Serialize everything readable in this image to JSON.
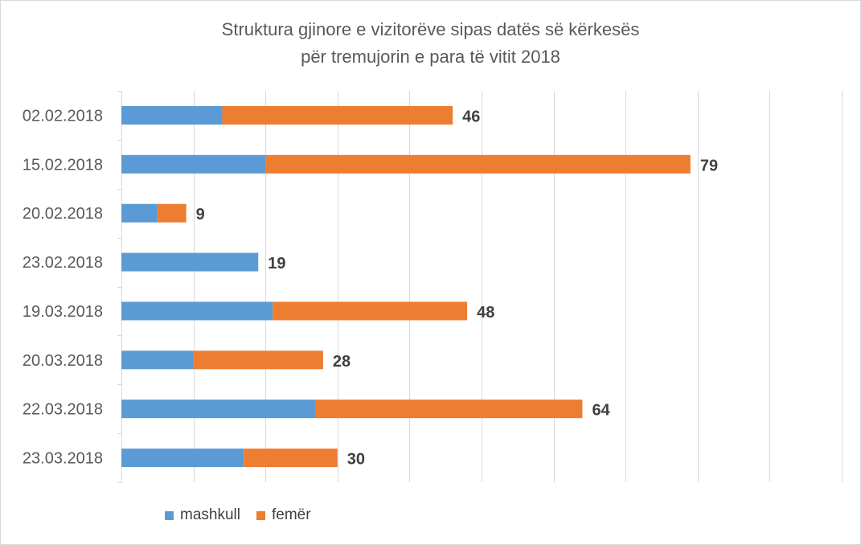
{
  "chart_data": {
    "type": "bar",
    "orientation": "horizontal",
    "stacked": true,
    "title_line1": "Struktura gjinore e vizitorëve sipas datës së kërkesës",
    "title_line2": "për tremujorin e para të vitit 2018",
    "categories": [
      "02.02.2018",
      "15.02.2018",
      "20.02.2018",
      "23.02.2018",
      "19.03.2018",
      "20.03.2018",
      "22.03.2018",
      "23.03.2018"
    ],
    "series": [
      {
        "name": "mashkull",
        "color": "#5b9bd5",
        "values": [
          14,
          20,
          5,
          19,
          21,
          10,
          27,
          17
        ]
      },
      {
        "name": "femër",
        "color": "#ed7d31",
        "values": [
          32,
          59,
          4,
          0,
          27,
          18,
          37,
          13
        ]
      }
    ],
    "totals": [
      "46",
      "79",
      "9",
      "19",
      "48",
      "28",
      "64",
      "30"
    ],
    "xlim": [
      0,
      100
    ],
    "x_gridline_step": 10,
    "grid": "vertical",
    "legend_position": "bottom-left"
  }
}
